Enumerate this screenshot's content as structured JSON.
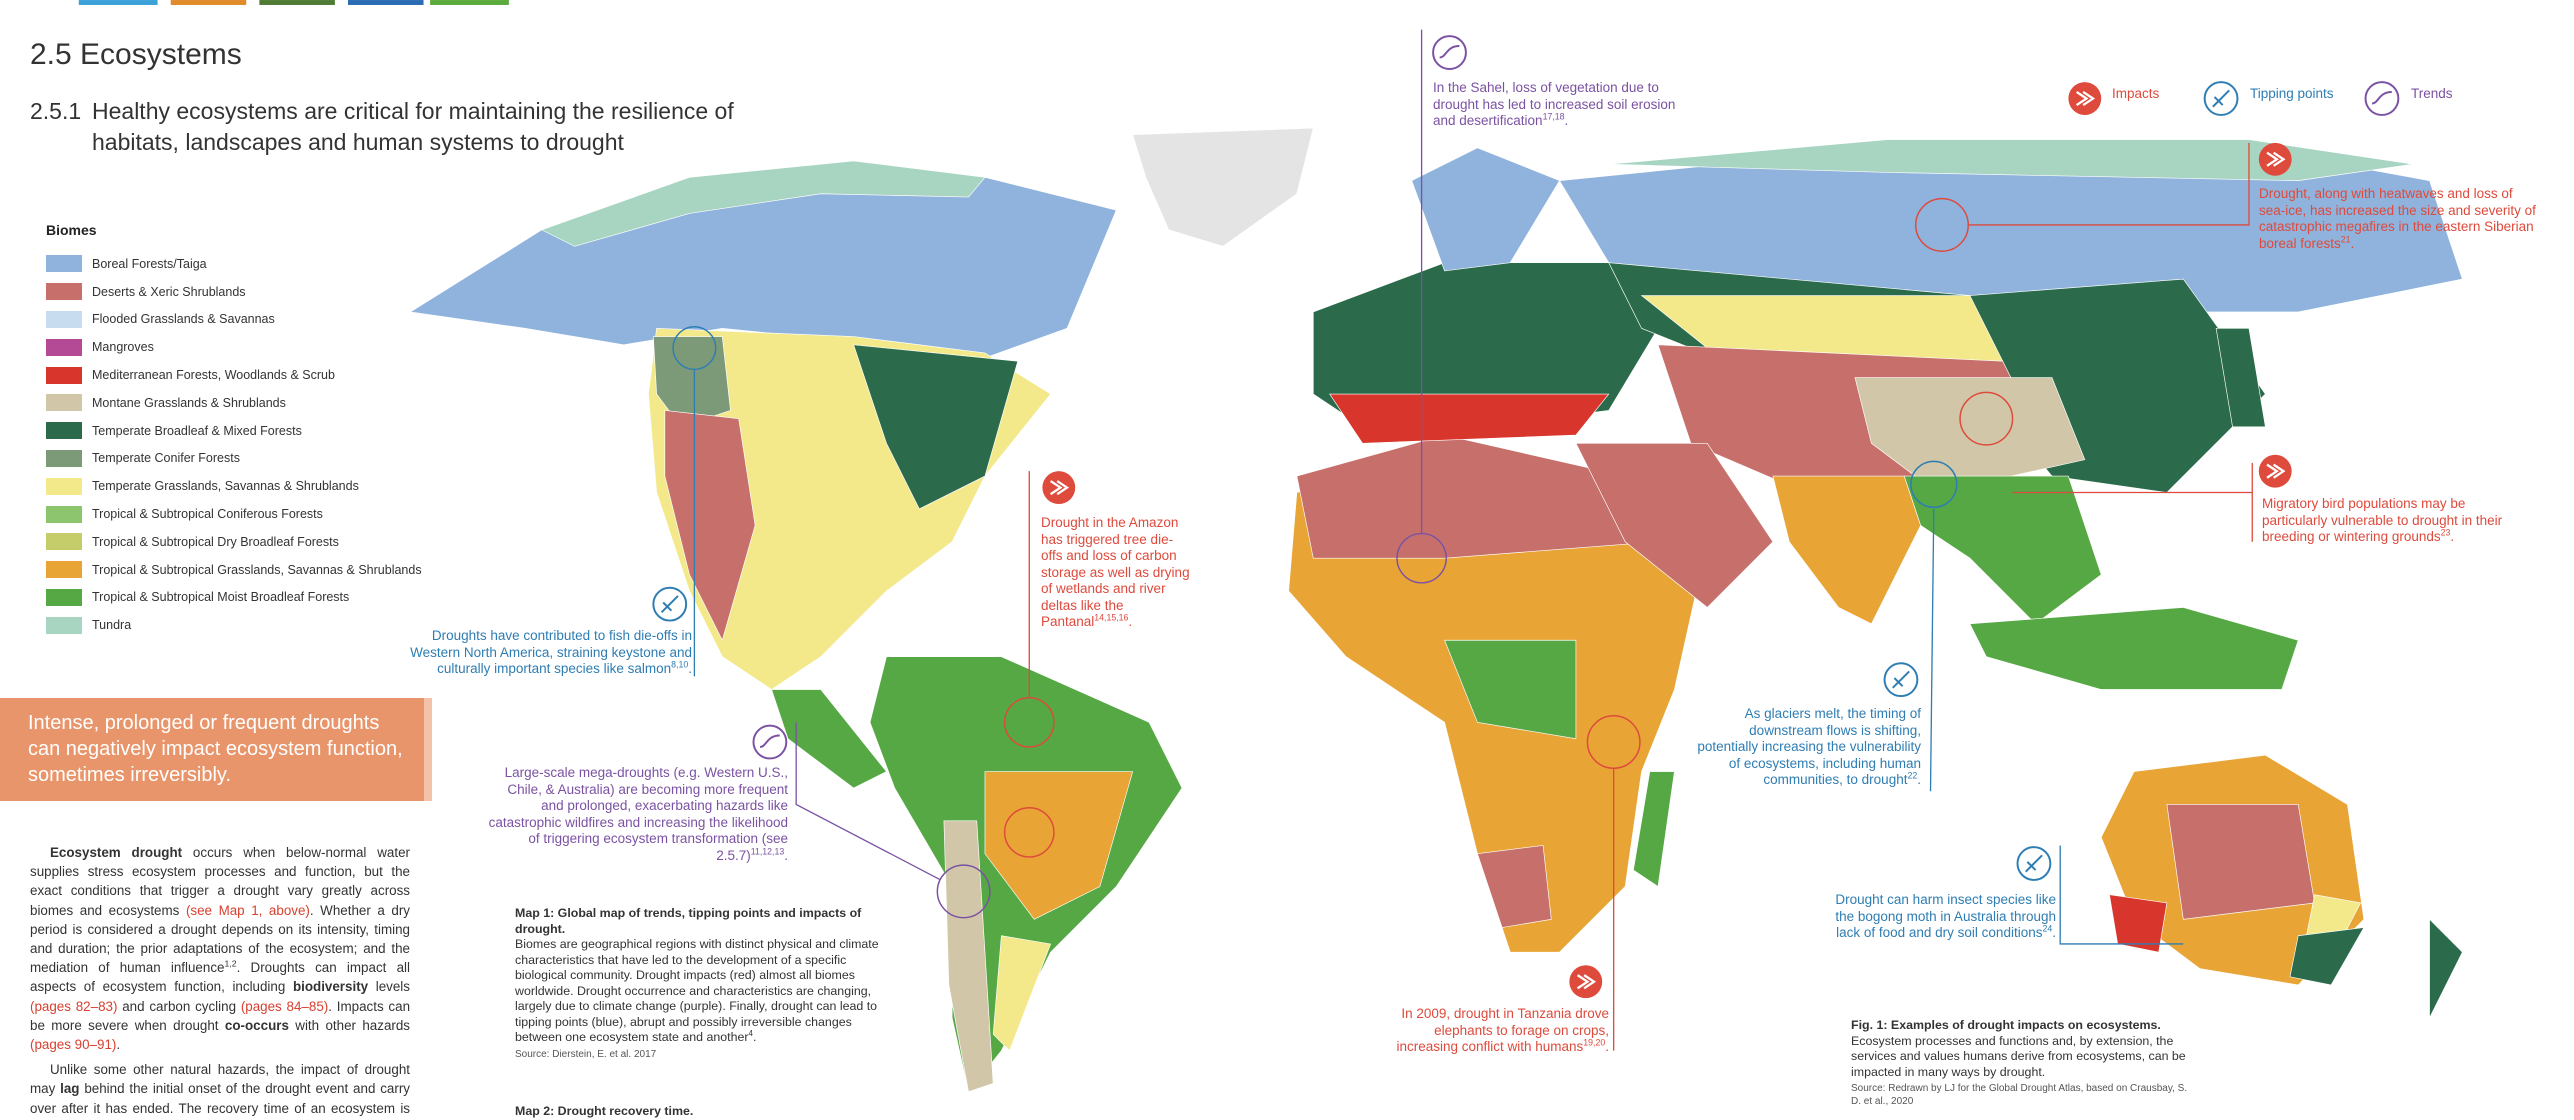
{
  "header": {
    "section": "2.5 Ecosystems",
    "number": "2.5.1",
    "title": "Healthy ecosystems are critical for maintaining the resilience of habitats, landscapes and human systems to drought"
  },
  "legend": {
    "title": "Biomes",
    "items": [
      {
        "label": "Boreal Forests/Taiga",
        "color": "#8fb3dd"
      },
      {
        "label": "Deserts & Xeric Shrublands",
        "color": "#c7706b"
      },
      {
        "label": "Flooded Grasslands & Savannas",
        "color": "#c7dcef"
      },
      {
        "label": "Mangroves",
        "color": "#b44a95"
      },
      {
        "label": "Mediterranean Forests, Woodlands & Scrub",
        "color": "#d8362c"
      },
      {
        "label": "Montane Grasslands & Shrublands",
        "color": "#d1c6a8"
      },
      {
        "label": "Temperate Broadleaf & Mixed Forests",
        "color": "#2b6b4b"
      },
      {
        "label": "Temperate Conifer Forests",
        "color": "#7d9a78"
      },
      {
        "label": "Temperate Grasslands, Savannas & Shrublands",
        "color": "#f3e98a"
      },
      {
        "label": "Tropical & Subtropical Coniferous Forests",
        "color": "#8cc56e"
      },
      {
        "label": "Tropical & Subtropical Dry Broadleaf Forests",
        "color": "#c5cc6a"
      },
      {
        "label": "Tropical & Subtropical Grasslands, Savannas & Shrublands",
        "color": "#e9a436"
      },
      {
        "label": "Tropical & Subtropical Moist Broadleaf Forests",
        "color": "#55a844"
      },
      {
        "label": "Tundra",
        "color": "#a8d5c2"
      }
    ]
  },
  "key": [
    {
      "label": "Impacts",
      "color": "#de4a3c"
    },
    {
      "label": "Tipping points",
      "color": "#2e7db3"
    },
    {
      "label": "Trends",
      "color": "#7b52a3"
    }
  ],
  "callout": "Intense, prolonged or frequent droughts can negatively impact ecosystem function, sometimes irreversibly.",
  "body": [
    [
      {
        "text": "Ecosystem drought",
        "style": "bold"
      },
      {
        "text": " occurs when below-normal water supplies stress ecosystem processes and function, but the exact conditions that trigger a drought vary greatly across biomes and ecosystems "
      },
      {
        "text": "(see Map 1, above)",
        "style": "ref"
      },
      {
        "text": ". Whether a dry period is considered a drought depends on its intensity, timing and duration; the prior adaptations of the ecosystem; and the mediation of human influence"
      },
      {
        "text": "1,2",
        "style": "sup"
      },
      {
        "text": ". Droughts can impact all aspects of ecosystem function, including "
      },
      {
        "text": "biodiversity",
        "style": "bold"
      },
      {
        "text": " levels "
      },
      {
        "text": "(pages 82–83)",
        "style": "ref"
      },
      {
        "text": " and carbon cycling "
      },
      {
        "text": "(pages 84–85)",
        "style": "ref"
      },
      {
        "text": ". Impacts can be more severe when drought "
      },
      {
        "text": "co-occurs",
        "style": "bold"
      },
      {
        "text": " with other hazards "
      },
      {
        "text": "(pages 90–91)",
        "style": "ref"
      },
      {
        "text": "."
      }
    ],
    [
      {
        "text": "Unlike some other natural hazards, the impact of drought may "
      },
      {
        "text": "lag",
        "style": "bold"
      },
      {
        "text": " behind the initial onset of the drought event and carry over after it has ended. The recovery time of an ecosystem is defined as the time it takes to return to its pre-drought"
      }
    ]
  ],
  "annotations": [
    {
      "color": "#7b52a3",
      "segments": [
        {
          "text": "In the Sahel, loss of vegetation due to drought has led to increased soil erosion and desertification"
        },
        {
          "text": "17,18",
          "style": "sup"
        },
        {
          "text": "."
        }
      ]
    },
    {
      "color": "#de4a3c",
      "segments": [
        {
          "text": "Drought, along with heatwaves and loss of sea-ice, has increased the size and severity of catastrophic megafires in the eastern Siberian boreal forests"
        },
        {
          "text": "21",
          "style": "sup"
        },
        {
          "text": "."
        }
      ]
    },
    {
      "color": "#de4a3c",
      "segments": [
        {
          "text": "Migratory bird populations may be particularly vulnerable to drought in their breeding or wintering grounds"
        },
        {
          "text": "23",
          "style": "sup"
        },
        {
          "text": "."
        }
      ]
    },
    {
      "color": "#de4a3c",
      "segments": [
        {
          "text": "Drought in the Amazon has triggered tree die-offs and loss of carbon storage as well as drying of wetlands and river deltas like the Pantanal"
        },
        {
          "text": "14,15,16",
          "style": "sup"
        },
        {
          "text": "."
        }
      ]
    },
    {
      "color": "#2e7db3",
      "segments": [
        {
          "text": "Droughts have contributed to fish die-offs in Western North America, straining keystone and culturally important species like salmon"
        },
        {
          "text": "8,10",
          "style": "sup"
        },
        {
          "text": "."
        }
      ]
    },
    {
      "color": "#7b52a3",
      "segments": [
        {
          "text": "Large-scale mega-droughts (e.g. Western U.S., Chile, & Australia) are becoming more frequent and prolonged, exacerbating hazards like catastrophic wildfires and increasing the likelihood of triggering ecosystem transformation (see 2.5.7)"
        },
        {
          "text": "11,12,13",
          "style": "sup"
        },
        {
          "text": "."
        }
      ]
    },
    {
      "color": "#2e7db3",
      "segments": [
        {
          "text": "As glaciers melt, the timing of downstream flows is shifting, potentially increasing the vulnerability of ecosystems, including human communities, to drought"
        },
        {
          "text": "22",
          "style": "sup"
        },
        {
          "text": "."
        }
      ]
    },
    {
      "color": "#2e7db3",
      "segments": [
        {
          "text": "Drought can harm insect species like the bogong moth in Australia through lack of food and dry soil conditions"
        },
        {
          "text": "24",
          "style": "sup"
        },
        {
          "text": "."
        }
      ]
    },
    {
      "color": "#de4a3c",
      "segments": [
        {
          "text": "In 2009, drought in Tanzania drove elephants to forage on crops, increasing conflict with humans"
        },
        {
          "text": "19,20",
          "style": "sup"
        },
        {
          "text": "."
        }
      ]
    }
  ],
  "map_caption": {
    "title": "Map 1: Global map of trends, tipping points and impacts of drought.",
    "body": [
      {
        "text": "Biomes are geographical regions with distinct physical and climate characteristics that have led to the development of a specific biological community. Drought impacts (red) almost all biomes worldwide. Drought occurrence and characteristics are changing, largely due to climate change (purple). Finally, drought can lead to tipping points (blue), abrupt and possibly irreversible changes between one ecosystem state and another"
      },
      {
        "text": "4",
        "style": "sup"
      },
      {
        "text": "."
      }
    ],
    "source": "Source: Dierstein, E. et al. 2017"
  },
  "fig_caption": {
    "title": "Fig. 1: Examples of drought impacts on ecosystems.",
    "body": [
      {
        "text": "Ecosystem processes and functions and, by extension, the services and values humans derive from ecosystems, can be impacted in many ways by drought."
      }
    ],
    "source": "Source: Redrawn by LJ for the Global Drought Atlas, based on Crausbay, S. D. et al., 2020"
  },
  "map2_caption": "Map 2: Drought recovery time."
}
